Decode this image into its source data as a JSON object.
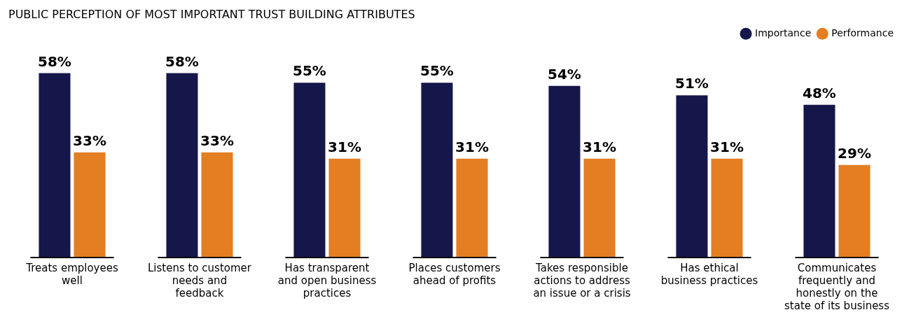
{
  "chart_data": {
    "type": "bar",
    "title": "PUBLIC PERCEPTION OF MOST IMPORTANT TRUST BUILDING ATTRIBUTES",
    "categories": [
      "Treats employees well",
      "Listens to customer needs and feedback",
      "Has transparent and open business practices",
      "Places customers ahead of profits",
      "Takes responsible actions to address an issue or a crisis",
      "Has ethical business practices",
      "Communicates frequently and honestly on the state of its business"
    ],
    "series": [
      {
        "name": "Importance",
        "color": "#15174b",
        "values": [
          58,
          58,
          55,
          55,
          54,
          51,
          48
        ],
        "value_labels": [
          "58%",
          "58%",
          "55%",
          "55%",
          "54%",
          "51%",
          "48%"
        ]
      },
      {
        "name": "Performance",
        "color": "#e37e22",
        "values": [
          33,
          33,
          31,
          31,
          31,
          31,
          29
        ],
        "value_labels": [
          "33%",
          "33%",
          "31%",
          "31%",
          "31%",
          "31%",
          "29%"
        ]
      }
    ],
    "legend": "top right",
    "grid": false,
    "tick_labels": "x"
  }
}
